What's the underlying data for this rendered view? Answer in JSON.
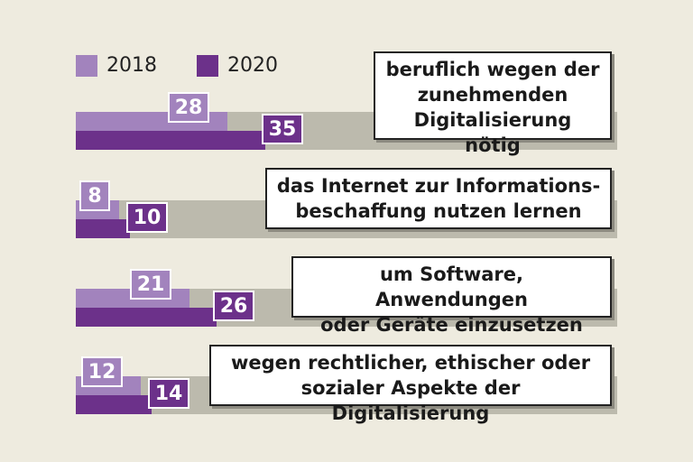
{
  "chart_data": {
    "type": "bar",
    "orientation": "horizontal",
    "title": "",
    "xlabel": "",
    "ylabel": "",
    "xlim": [
      0,
      100
    ],
    "grid": false,
    "legend_position": "top-left",
    "categories": [
      "beruflich wegen der zunehmenden Digitalisierung nötig",
      "das Internet zur Informationsbeschaffung nutzen lernen",
      "um Software, Anwendungen oder Geräte einzusetzen",
      "wegen rechtlicher, ethischer oder sozialer Aspekte der Digitalisierung"
    ],
    "category_lines": [
      [
        "beruflich wegen der",
        "zunehmenden",
        "Digitalisierung nötig"
      ],
      [
        "das Internet zur Informations-",
        "beschaffung nutzen lernen"
      ],
      [
        "um Software, Anwendungen",
        "oder Geräte einzusetzen"
      ],
      [
        "wegen rechtlicher, ethischer oder",
        "sozialer Aspekte der Digitalisierung"
      ]
    ],
    "series": [
      {
        "name": "2018",
        "color": "#a283bd",
        "values": [
          28,
          8,
          21,
          12
        ]
      },
      {
        "name": "2020",
        "color": "#6c318a",
        "values": [
          35,
          10,
          26,
          14
        ]
      }
    ],
    "track_color": "#bcbaad"
  }
}
